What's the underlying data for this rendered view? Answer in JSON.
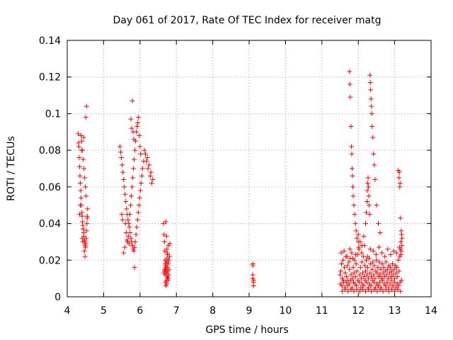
{
  "chart_data": {
    "type": "scatter",
    "title": "Day 061 of 2017, Rate Of TEC Index for receiver matg",
    "xlabel": "GPS time / hours",
    "ylabel": "ROTI / TECUs",
    "xlim": [
      4,
      14
    ],
    "ylim": [
      0,
      0.14
    ],
    "xticks": [
      4,
      5,
      6,
      7,
      8,
      9,
      10,
      11,
      12,
      13,
      14
    ],
    "yticks": [
      0,
      0.02,
      0.04,
      0.06,
      0.08,
      0.1,
      0.12,
      0.14
    ],
    "ytick_labels": [
      "0",
      "0.02",
      "0.04",
      "0.06",
      "0.08",
      "0.1",
      "0.12",
      "0.14"
    ],
    "grid": true,
    "marker": "+",
    "color": "#ff0000",
    "series": [
      {
        "name": "ROTI",
        "x": [
          4.3,
          4.31,
          4.32,
          4.33,
          4.34,
          4.35,
          4.36,
          4.37,
          4.38,
          4.39,
          4.4,
          4.41,
          4.42,
          4.43,
          4.44,
          4.45,
          4.46,
          4.47,
          4.48,
          4.49,
          4.5,
          4.51,
          4.52,
          4.53,
          4.54,
          4.55,
          4.56,
          4.38,
          4.4,
          4.42,
          4.44,
          4.46,
          4.48,
          4.5,
          4.52,
          4.36,
          4.34,
          4.41,
          4.43,
          4.47,
          4.49,
          4.51,
          4.53,
          4.55,
          4.45,
          4.39,
          5.45,
          5.47,
          5.49,
          5.51,
          5.53,
          5.55,
          5.57,
          5.59,
          5.61,
          5.63,
          5.65,
          5.67,
          5.69,
          5.71,
          5.73,
          5.75,
          5.77,
          5.79,
          5.81,
          5.83,
          5.85,
          5.87,
          5.89,
          5.91,
          5.93,
          5.95,
          5.97,
          5.99,
          6.01,
          6.03,
          6.05,
          6.07,
          6.1,
          6.15,
          6.2,
          6.25,
          6.3,
          6.35,
          5.5,
          5.52,
          5.6,
          5.62,
          5.64,
          5.7,
          5.72,
          5.74,
          5.76,
          5.78,
          5.8,
          5.82,
          5.84,
          5.86,
          5.88,
          5.9,
          5.92,
          5.94,
          5.96,
          5.98,
          6.0,
          6.02,
          6.12,
          6.18,
          6.22,
          6.28,
          6.32,
          5.55,
          5.58,
          5.66,
          5.68,
          5.79,
          5.81,
          5.83,
          5.85,
          5.77,
          5.75,
          6.65,
          6.66,
          6.67,
          6.68,
          6.69,
          6.7,
          6.71,
          6.72,
          6.73,
          6.74,
          6.75,
          6.76,
          6.77,
          6.78,
          6.79,
          6.8,
          6.66,
          6.68,
          6.7,
          6.72,
          6.74,
          6.76,
          6.78,
          6.7,
          6.72,
          6.74,
          6.76,
          6.71,
          6.73,
          6.75,
          6.77,
          6.69,
          6.67,
          6.79,
          6.81,
          6.82,
          6.71,
          6.73,
          6.75,
          6.74,
          6.76,
          6.7,
          6.72,
          9.1,
          9.1,
          9.1,
          9.1,
          9.12,
          9.12,
          9.12,
          11.5,
          11.52,
          11.54,
          11.56,
          11.58,
          11.6,
          11.62,
          11.64,
          11.66,
          11.68,
          11.7,
          11.72,
          11.74,
          11.76,
          11.78,
          11.8,
          11.82,
          11.84,
          11.86,
          11.88,
          11.9,
          11.92,
          11.94,
          11.96,
          11.98,
          12.0,
          12.02,
          12.04,
          12.06,
          12.08,
          12.1,
          12.12,
          12.14,
          12.16,
          12.18,
          12.2,
          12.22,
          12.24,
          12.26,
          12.28,
          12.3,
          12.32,
          12.34,
          12.36,
          12.38,
          12.4,
          12.42,
          12.44,
          12.46,
          12.48,
          12.5,
          12.52,
          12.54,
          12.56,
          12.58,
          12.6,
          12.62,
          12.64,
          12.66,
          12.68,
          12.7,
          12.72,
          12.74,
          12.76,
          12.78,
          12.8,
          12.82,
          12.84,
          12.86,
          12.88,
          12.9,
          12.92,
          12.94,
          12.96,
          12.98,
          13.0,
          13.02,
          13.04,
          13.06,
          13.08,
          13.1,
          13.12,
          13.14,
          13.16,
          13.18,
          13.2,
          11.51,
          11.55,
          11.59,
          11.63,
          11.67,
          11.71,
          11.75,
          11.79,
          11.83,
          11.87,
          11.91,
          11.95,
          11.99,
          12.03,
          12.07,
          12.11,
          12.15,
          12.19,
          12.23,
          12.27,
          12.31,
          12.35,
          12.39,
          12.43,
          12.47,
          12.51,
          12.55,
          12.59,
          12.63,
          12.67,
          12.71,
          12.75,
          12.79,
          12.83,
          12.87,
          12.91,
          12.95,
          12.99,
          13.03,
          13.07,
          13.11,
          13.15,
          13.19,
          11.53,
          11.61,
          11.69,
          11.77,
          11.85,
          11.93,
          12.01,
          12.09,
          12.17,
          12.25,
          12.33,
          12.41,
          12.49,
          12.57,
          12.65,
          12.73,
          12.81,
          12.89,
          12.97,
          13.05,
          13.13,
          13.17,
          11.56,
          11.64,
          11.72,
          11.8,
          11.88,
          11.96,
          12.04,
          12.12,
          12.2,
          12.28,
          12.36,
          12.44,
          12.52,
          12.6,
          12.68,
          12.76,
          12.84,
          12.92,
          13.0,
          13.08,
          13.16,
          11.76,
          11.77,
          11.78,
          11.8,
          11.81,
          11.82,
          11.83,
          11.84,
          11.85,
          11.86,
          11.88,
          11.9,
          11.92,
          11.94,
          11.96,
          12.0,
          12.05,
          12.1,
          12.15,
          12.2,
          12.22,
          12.24,
          12.25,
          12.26,
          12.27,
          12.28,
          12.29,
          12.3,
          12.31,
          12.32,
          12.33,
          12.34,
          12.35,
          12.36,
          12.37,
          12.38,
          12.4,
          12.42,
          12.44,
          12.46,
          12.5,
          12.55,
          12.6,
          13.1,
          13.12,
          13.14,
          13.16,
          13.18,
          13.2,
          13.13,
          13.15,
          13.17,
          13.19
        ],
        "y": [
          0.089,
          0.084,
          0.082,
          0.076,
          0.071,
          0.066,
          0.062,
          0.058,
          0.054,
          0.05,
          0.046,
          0.044,
          0.041,
          0.039,
          0.037,
          0.035,
          0.033,
          0.031,
          0.03,
          0.028,
          0.027,
          0.029,
          0.032,
          0.036,
          0.04,
          0.044,
          0.048,
          0.088,
          0.085,
          0.08,
          0.075,
          0.07,
          0.065,
          0.06,
          0.055,
          0.05,
          0.045,
          0.032,
          0.03,
          0.025,
          0.022,
          0.098,
          0.104,
          0.043,
          0.087,
          0.08,
          0.082,
          0.079,
          0.076,
          0.072,
          0.068,
          0.064,
          0.06,
          0.056,
          0.052,
          0.048,
          0.045,
          0.042,
          0.04,
          0.038,
          0.035,
          0.032,
          0.03,
          0.028,
          0.026,
          0.025,
          0.027,
          0.03,
          0.034,
          0.038,
          0.042,
          0.046,
          0.05,
          0.054,
          0.058,
          0.062,
          0.066,
          0.07,
          0.074,
          0.078,
          0.076,
          0.072,
          0.068,
          0.064,
          0.045,
          0.042,
          0.04,
          0.035,
          0.031,
          0.029,
          0.045,
          0.05,
          0.055,
          0.06,
          0.065,
          0.07,
          0.075,
          0.08,
          0.085,
          0.09,
          0.093,
          0.095,
          0.098,
          0.088,
          0.082,
          0.078,
          0.08,
          0.074,
          0.07,
          0.066,
          0.062,
          0.024,
          0.027,
          0.03,
          0.033,
          0.107,
          0.09,
          0.086,
          0.016,
          0.092,
          0.097,
          0.04,
          0.034,
          0.03,
          0.025,
          0.02,
          0.018,
          0.016,
          0.014,
          0.013,
          0.012,
          0.011,
          0.01,
          0.009,
          0.01,
          0.012,
          0.015,
          0.013,
          0.015,
          0.017,
          0.019,
          0.021,
          0.023,
          0.028,
          0.008,
          0.009,
          0.011,
          0.014,
          0.006,
          0.007,
          0.016,
          0.018,
          0.012,
          0.014,
          0.02,
          0.022,
          0.029,
          0.041,
          0.033,
          0.024,
          0.026,
          0.019,
          0.015,
          0.017,
          0.018,
          0.017,
          0.012,
          0.01,
          0.009,
          0.008,
          0.006,
          0.012,
          0.014,
          0.018,
          0.01,
          0.02,
          0.008,
          0.016,
          0.013,
          0.022,
          0.011,
          0.017,
          0.009,
          0.019,
          0.015,
          0.021,
          0.012,
          0.024,
          0.01,
          0.016,
          0.013,
          0.02,
          0.011,
          0.018,
          0.014,
          0.023,
          0.03,
          0.026,
          0.012,
          0.016,
          0.01,
          0.019,
          0.013,
          0.022,
          0.011,
          0.017,
          0.014,
          0.02,
          0.012,
          0.016,
          0.01,
          0.021,
          0.013,
          0.018,
          0.011,
          0.015,
          0.019,
          0.012,
          0.017,
          0.01,
          0.014,
          0.02,
          0.013,
          0.016,
          0.011,
          0.019,
          0.012,
          0.015,
          0.01,
          0.018,
          0.013,
          0.016,
          0.011,
          0.014,
          0.019,
          0.012,
          0.015,
          0.01,
          0.017,
          0.013,
          0.016,
          0.011,
          0.014,
          0.018,
          0.012,
          0.015,
          0.01,
          0.017,
          0.013,
          0.016,
          0.011,
          0.02,
          0.014,
          0.022,
          0.026,
          0.025,
          0.028,
          0.007,
          0.006,
          0.009,
          0.005,
          0.008,
          0.006,
          0.007,
          0.009,
          0.005,
          0.008,
          0.007,
          0.006,
          0.009,
          0.008,
          0.005,
          0.007,
          0.006,
          0.009,
          0.008,
          0.005,
          0.007,
          0.006,
          0.009,
          0.008,
          0.005,
          0.007,
          0.006,
          0.008,
          0.005,
          0.009,
          0.007,
          0.006,
          0.008,
          0.005,
          0.007,
          0.009,
          0.006,
          0.008,
          0.005,
          0.007,
          0.006,
          0.008,
          0.009,
          0.024,
          0.025,
          0.022,
          0.026,
          0.021,
          0.023,
          0.027,
          0.024,
          0.028,
          0.022,
          0.026,
          0.025,
          0.023,
          0.027,
          0.024,
          0.022,
          0.026,
          0.023,
          0.025,
          0.024,
          0.027,
          0.023,
          0.003,
          0.004,
          0.003,
          0.004,
          0.003,
          0.004,
          0.003,
          0.004,
          0.003,
          0.004,
          0.003,
          0.004,
          0.003,
          0.004,
          0.003,
          0.004,
          0.003,
          0.004,
          0.003,
          0.004,
          0.003,
          0.123,
          0.116,
          0.109,
          0.093,
          0.082,
          0.078,
          0.07,
          0.066,
          0.06,
          0.055,
          0.05,
          0.045,
          0.04,
          0.036,
          0.032,
          0.034,
          0.03,
          0.028,
          0.033,
          0.04,
          0.046,
          0.052,
          0.058,
          0.062,
          0.065,
          0.06,
          0.055,
          0.05,
          0.045,
          0.121,
          0.117,
          0.113,
          0.108,
          0.104,
          0.1,
          0.093,
          0.087,
          0.078,
          0.072,
          0.064,
          0.05,
          0.04,
          0.035,
          0.069,
          0.065,
          0.06,
          0.043,
          0.036,
          0.032,
          0.068,
          0.062,
          0.03,
          0.034
        ]
      }
    ]
  }
}
